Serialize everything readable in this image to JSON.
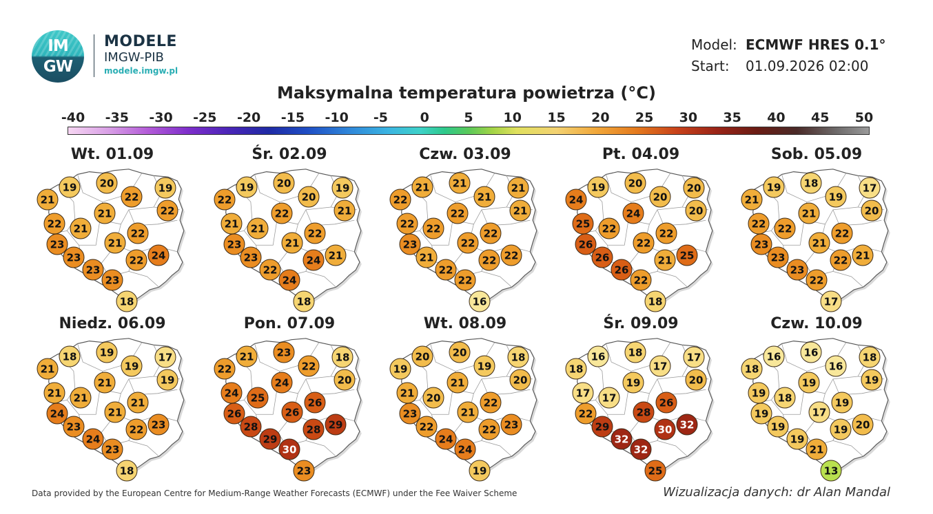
{
  "header": {
    "logo_text_top": "IM",
    "logo_text_bottom": "GW",
    "brand_title": "MODELE",
    "brand_subtitle": "IMGW-PIB",
    "brand_url": "modele.imgw.pl",
    "model_label": "Model:",
    "model_value": "ECMWF HRES 0.1°",
    "start_label": "Start:",
    "start_value": "01.09.2026 02:00"
  },
  "map_title": "Maksymalna temperatura powietrza (°C)",
  "colorbar": {
    "ticks": [
      "-40",
      "-35",
      "-30",
      "-25",
      "-20",
      "-15",
      "-10",
      "-5",
      "0",
      "5",
      "10",
      "15",
      "20",
      "25",
      "30",
      "35",
      "40",
      "45",
      "50"
    ],
    "min": -40,
    "max": 50
  },
  "colors": {
    "t13": "#b9e04f",
    "t16": "#f8e79a",
    "t17": "#f8de86",
    "t18": "#f6d572",
    "t19": "#f4c95e",
    "t20": "#f2bc4c",
    "t21": "#f0ad3a",
    "t22": "#ee9d2c",
    "t23": "#ea8d22",
    "t24": "#e67d1c",
    "t25": "#df6c18",
    "t26": "#d85e16",
    "t28": "#c94914",
    "t29": "#bd3d14",
    "t30": "#b03214",
    "t32": "#9e2714"
  },
  "panels": [
    {
      "date": "Wt. 01.09",
      "values": [
        19,
        20,
        19,
        21,
        22,
        22,
        22,
        21,
        21,
        23,
        21,
        22,
        23,
        23,
        22,
        24,
        23,
        18
      ]
    },
    {
      "date": "Śr. 02.09",
      "values": [
        19,
        20,
        19,
        22,
        20,
        21,
        21,
        21,
        22,
        23,
        21,
        22,
        23,
        22,
        24,
        21,
        24,
        18
      ]
    },
    {
      "date": "Czw. 03.09",
      "values": [
        21,
        21,
        21,
        22,
        21,
        21,
        22,
        22,
        22,
        23,
        22,
        22,
        21,
        22,
        22,
        22,
        22,
        16
      ]
    },
    {
      "date": "Pt. 04.09",
      "values": [
        19,
        20,
        20,
        24,
        20,
        20,
        25,
        22,
        24,
        26,
        22,
        22,
        26,
        26,
        21,
        25,
        22,
        18
      ]
    },
    {
      "date": "Sob. 05.09",
      "values": [
        19,
        18,
        17,
        21,
        19,
        20,
        22,
        22,
        21,
        23,
        21,
        22,
        23,
        23,
        22,
        21,
        22,
        17
      ]
    },
    {
      "date": "Niedz. 06.09",
      "values": [
        18,
        19,
        17,
        21,
        19,
        19,
        21,
        21,
        21,
        24,
        21,
        21,
        23,
        24,
        22,
        23,
        23,
        18
      ]
    },
    {
      "date": "Pon. 07.09",
      "values": [
        21,
        23,
        18,
        22,
        22,
        20,
        24,
        25,
        24,
        26,
        26,
        26,
        28,
        29,
        28,
        29,
        30,
        23
      ]
    },
    {
      "date": "Wt. 08.09",
      "values": [
        20,
        20,
        18,
        19,
        19,
        20,
        21,
        20,
        21,
        23,
        21,
        22,
        22,
        24,
        22,
        23,
        24,
        19
      ]
    },
    {
      "date": "Śr. 09.09",
      "values": [
        16,
        18,
        17,
        18,
        17,
        20,
        17,
        17,
        19,
        22,
        28,
        26,
        29,
        32,
        30,
        32,
        32,
        25
      ]
    },
    {
      "date": "Czw. 10.09",
      "values": [
        16,
        16,
        18,
        18,
        16,
        19,
        19,
        18,
        19,
        19,
        17,
        19,
        19,
        19,
        19,
        20,
        21,
        13
      ]
    }
  ],
  "footer": {
    "credit": "Data provided by the European Centre for Medium-Range Weather Forecasts (ECMWF) under the Fee Waiver Scheme",
    "author": "Wizualizacja danych: dr Alan Mandal"
  }
}
